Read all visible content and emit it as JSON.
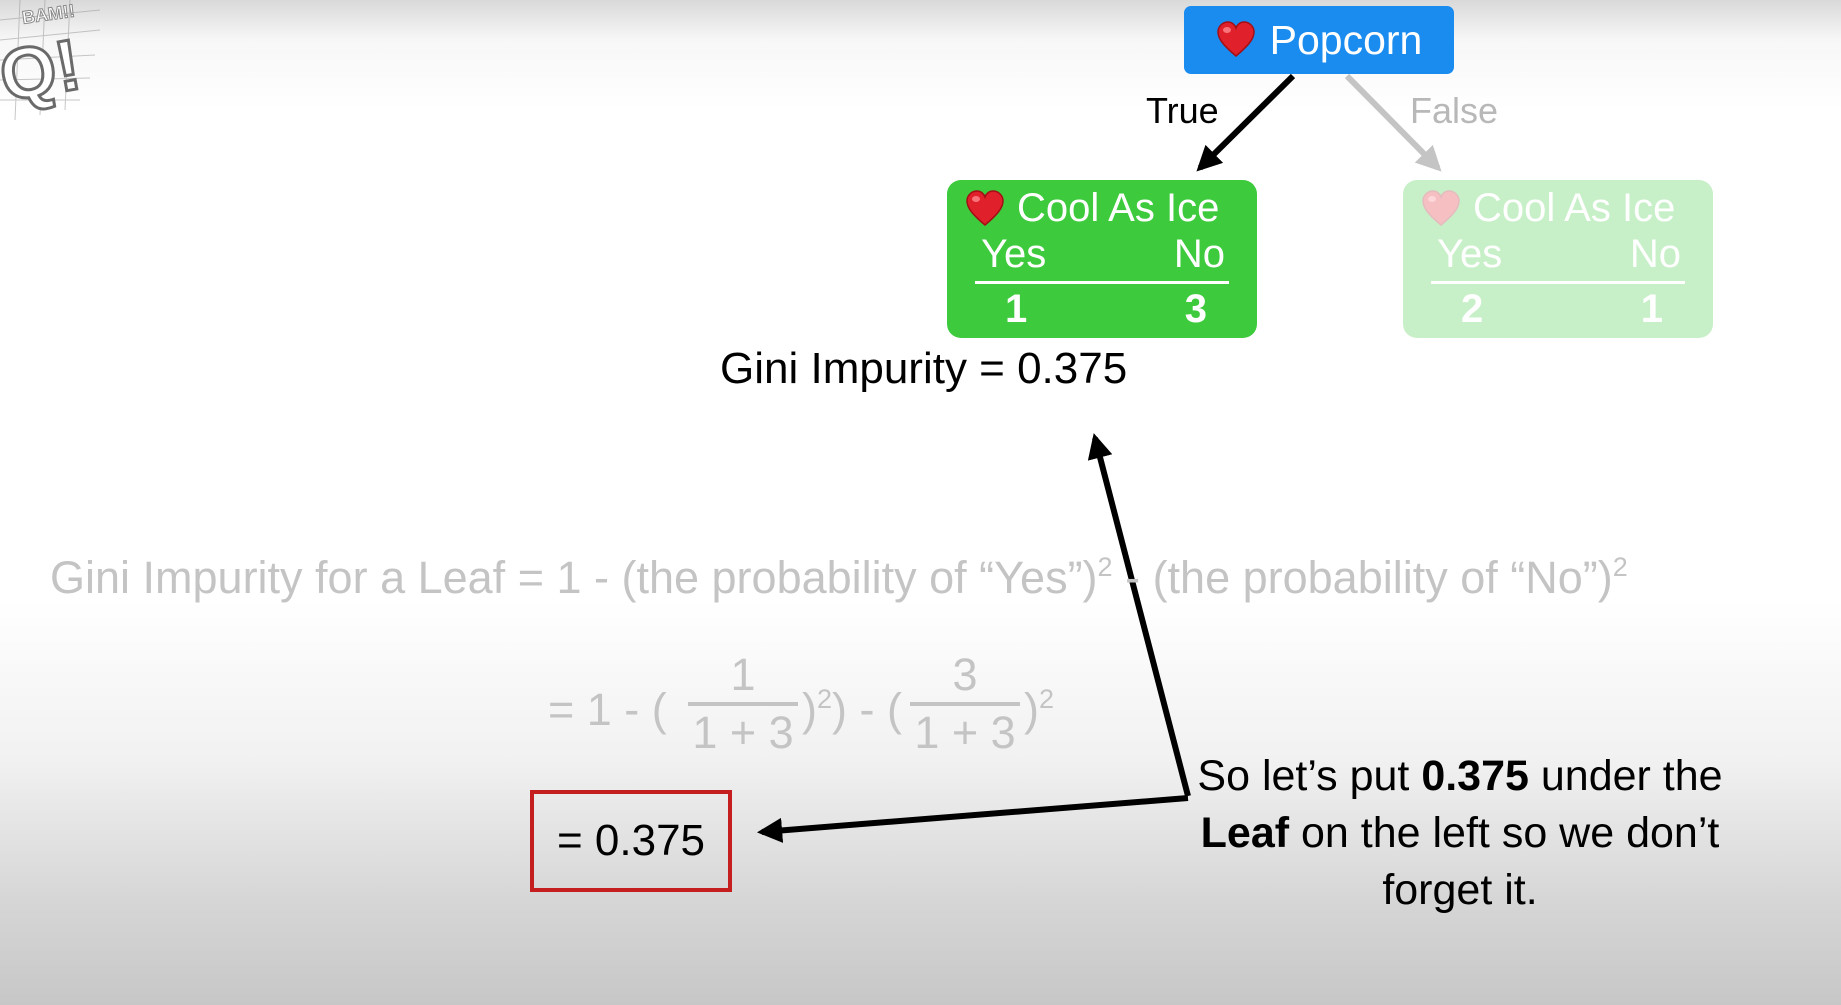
{
  "logo": {
    "text": "BAM!!"
  },
  "tree": {
    "root": {
      "label": "Popcorn",
      "icon": "heart-icon"
    },
    "true_label": "True",
    "false_label": "False",
    "left_leaf": {
      "title": "Cool As Ice",
      "icon": "heart-icon",
      "yes_label": "Yes",
      "no_label": "No",
      "yes_count": "1",
      "no_count": "3"
    },
    "right_leaf": {
      "title": "Cool As Ice",
      "icon": "heart-icon",
      "yes_label": "Yes",
      "no_label": "No",
      "yes_count": "2",
      "no_count": "1"
    }
  },
  "gini_result": "Gini Impurity = 0.375",
  "formula": {
    "lhs": "Gini Impurity for a Leaf = 1 - (the probability of “Yes”)",
    "mid": " - (the probability of “No”)",
    "sup": "2"
  },
  "calc": {
    "prefix": "= 1 - (",
    "frac1_num": "1",
    "frac1_den": "1 + 3",
    "mid": ") - (",
    "frac2_num": "3",
    "frac2_den": "1 + 3",
    "suffix": ")",
    "sup": "2"
  },
  "result_box": "= 0.375",
  "note": {
    "part1": "So let’s put ",
    "bold1": "0.375",
    "part2": " under the ",
    "bold2": "Leaf",
    "part3": " on the left so we don’t forget it."
  },
  "colors": {
    "root_node": "#1a8cf0",
    "leaf": "#3dcb3d",
    "highlight_box": "#c41e1e",
    "faded_text": "#c4c4c4"
  }
}
